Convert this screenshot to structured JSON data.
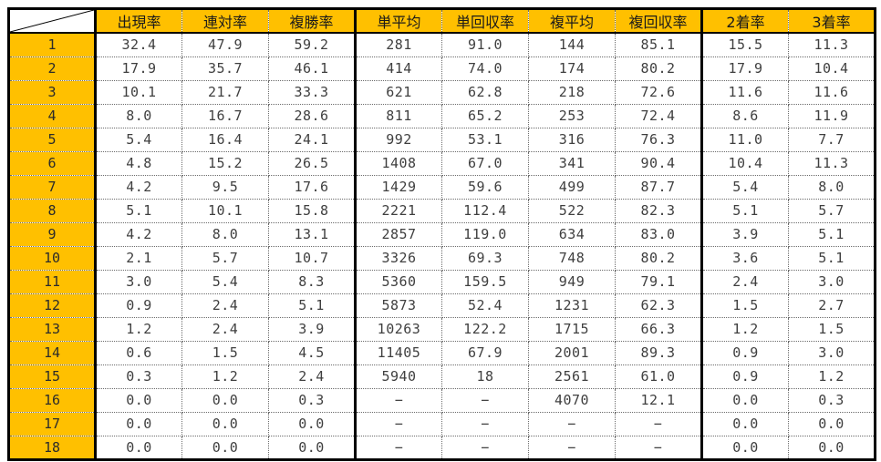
{
  "colors": {
    "header_bg": "#FFC000",
    "label_bg": "#FFC000",
    "thick_border": "#000000",
    "dotted_grid": "#6B6B6B",
    "data_text": "#3F3F3F"
  },
  "table": {
    "corner_label": "",
    "columns": [
      "出現率",
      "連対率",
      "複勝率",
      "単平均",
      "単回収率",
      "複平均",
      "複回収率",
      "2着率",
      "3着率"
    ],
    "group_separator_after_columns": [
      "複勝率",
      "複回収率"
    ],
    "rows": [
      {
        "label": "1",
        "values": [
          "32.4",
          "47.9",
          "59.2",
          "281",
          "91.0",
          "144",
          "85.1",
          "15.5",
          "11.3"
        ]
      },
      {
        "label": "2",
        "values": [
          "17.9",
          "35.7",
          "46.1",
          "414",
          "74.0",
          "174",
          "80.2",
          "17.9",
          "10.4"
        ]
      },
      {
        "label": "3",
        "values": [
          "10.1",
          "21.7",
          "33.3",
          "621",
          "62.8",
          "218",
          "72.6",
          "11.6",
          "11.6"
        ]
      },
      {
        "label": "4",
        "values": [
          "8.0",
          "16.7",
          "28.6",
          "811",
          "65.2",
          "253",
          "72.4",
          "8.6",
          "11.9"
        ]
      },
      {
        "label": "5",
        "values": [
          "5.4",
          "16.4",
          "24.1",
          "992",
          "53.1",
          "316",
          "76.3",
          "11.0",
          "7.7"
        ]
      },
      {
        "label": "6",
        "values": [
          "4.8",
          "15.2",
          "26.5",
          "1408",
          "67.0",
          "341",
          "90.4",
          "10.4",
          "11.3"
        ]
      },
      {
        "label": "7",
        "values": [
          "4.2",
          "9.5",
          "17.6",
          "1429",
          "59.6",
          "499",
          "87.7",
          "5.4",
          "8.0"
        ]
      },
      {
        "label": "8",
        "values": [
          "5.1",
          "10.1",
          "15.8",
          "2221",
          "112.4",
          "522",
          "82.3",
          "5.1",
          "5.7"
        ]
      },
      {
        "label": "9",
        "values": [
          "4.2",
          "8.0",
          "13.1",
          "2857",
          "119.0",
          "634",
          "83.0",
          "3.9",
          "5.1"
        ]
      },
      {
        "label": "10",
        "values": [
          "2.1",
          "5.7",
          "10.7",
          "3326",
          "69.3",
          "748",
          "80.2",
          "3.6",
          "5.1"
        ]
      },
      {
        "label": "11",
        "values": [
          "3.0",
          "5.4",
          "8.3",
          "5360",
          "159.5",
          "949",
          "79.1",
          "2.4",
          "3.0"
        ]
      },
      {
        "label": "12",
        "values": [
          "0.9",
          "2.4",
          "5.1",
          "5873",
          "52.4",
          "1231",
          "62.3",
          "1.5",
          "2.7"
        ]
      },
      {
        "label": "13",
        "values": [
          "1.2",
          "2.4",
          "3.9",
          "10263",
          "122.2",
          "1715",
          "66.3",
          "1.2",
          "1.5"
        ]
      },
      {
        "label": "14",
        "values": [
          "0.6",
          "1.5",
          "4.5",
          "11405",
          "67.9",
          "2001",
          "89.3",
          "0.9",
          "3.0"
        ]
      },
      {
        "label": "15",
        "values": [
          "0.3",
          "1.2",
          "2.4",
          "5940",
          "18",
          "2561",
          "61.0",
          "0.9",
          "1.2"
        ]
      },
      {
        "label": "16",
        "values": [
          "0.0",
          "0.0",
          "0.3",
          "−",
          "−",
          "4070",
          "12.1",
          "0.0",
          "0.3"
        ]
      },
      {
        "label": "17",
        "values": [
          "0.0",
          "0.0",
          "0.0",
          "−",
          "−",
          "−",
          "−",
          "0.0",
          "0.0"
        ]
      },
      {
        "label": "18",
        "values": [
          "0.0",
          "0.0",
          "0.0",
          "−",
          "−",
          "−",
          "−",
          "0.0",
          "0.0"
        ]
      }
    ]
  }
}
